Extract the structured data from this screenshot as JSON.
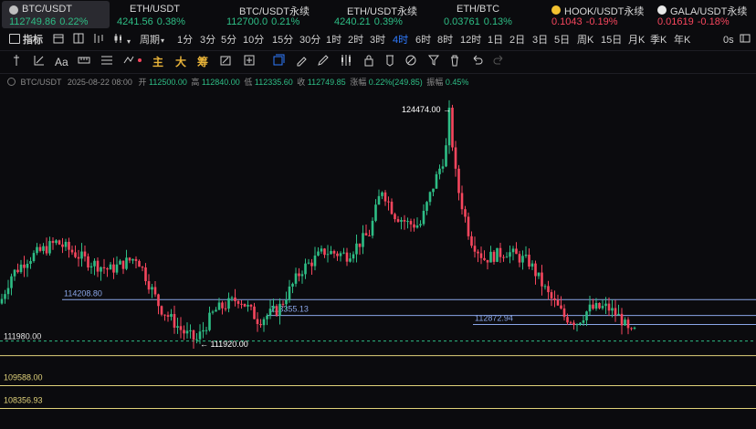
{
  "tickers": [
    {
      "name": "BTC/USDT",
      "price": "112749.86",
      "pct": "0.22%",
      "dir": "up",
      "active": true,
      "dot": "#bfbfbf"
    },
    {
      "name": "ETH/USDT",
      "price": "4241.56",
      "pct": "0.38%",
      "dir": "up",
      "active": false,
      "dot": ""
    },
    {
      "name": "BTC/USDT永续",
      "price": "112700.0",
      "pct": "0.21%",
      "dir": "up",
      "active": false,
      "dot": ""
    },
    {
      "name": "ETH/USDT永续",
      "price": "4240.21",
      "pct": "0.39%",
      "dir": "up",
      "active": false,
      "dot": ""
    },
    {
      "name": "ETH/BTC",
      "price": "0.03761",
      "pct": "0.13%",
      "dir": "up",
      "active": false,
      "dot": ""
    },
    {
      "name": "HOOK/USDT永续",
      "price": "0.1043",
      "pct": "-0.19%",
      "dir": "dn",
      "active": false,
      "dot": "#f2c230"
    },
    {
      "name": "GALA/USDT永续",
      "price": "0.01619",
      "pct": "-0.18%",
      "dir": "dn",
      "active": false,
      "dot": "#e8e8e8"
    }
  ],
  "toolbar": {
    "indicator_label": "指标",
    "period_label": "周期",
    "intervals": [
      "1分",
      "3分",
      "5分",
      "10分",
      "15分",
      "30分",
      "1时",
      "2时",
      "3时",
      "4时",
      "6时",
      "8时",
      "12时",
      "1日",
      "2日",
      "3日",
      "5日",
      "周K",
      "15日",
      "月K",
      "季K",
      "年K"
    ],
    "selected_interval": "4时",
    "countdown": "0s"
  },
  "drawing_tools": {
    "text_tool": "Aa",
    "char_zhu": "主",
    "char_da": "大",
    "char_chou": "筹"
  },
  "info": {
    "symbol": "BTC/USDT",
    "datetime": "2025-08-22 08:00",
    "open_label": "开",
    "open": "112500.00",
    "high_label": "高",
    "high": "112840.00",
    "low_label": "低",
    "low": "112335.60",
    "close_label": "收",
    "close": "112749.85",
    "change_label": "涨幅",
    "change": "0.22%(249.85)",
    "amp_label": "振幅",
    "amp": "0.45%"
  },
  "chart": {
    "price_range": [
      107500,
      125800
    ],
    "max_label": "124474.00",
    "min_label": "111920.00",
    "lines": [
      {
        "label": "114208.80",
        "price": 114208.8,
        "color": "#8aa6e8"
      },
      {
        "label": "113355.13",
        "price": 113355.13,
        "color": "#8aa6e8"
      },
      {
        "label": "112872.94",
        "price": 112872.94,
        "color": "#8aa6e8"
      },
      {
        "label": "111980.00",
        "price": 111980.0,
        "color": "#e4e4e4"
      },
      {
        "label": "109588.00",
        "price": 109588.0,
        "color": "#e0d27a"
      },
      {
        "label": "108356.93",
        "price": 108356.93,
        "color": "#e0d27a"
      }
    ]
  }
}
